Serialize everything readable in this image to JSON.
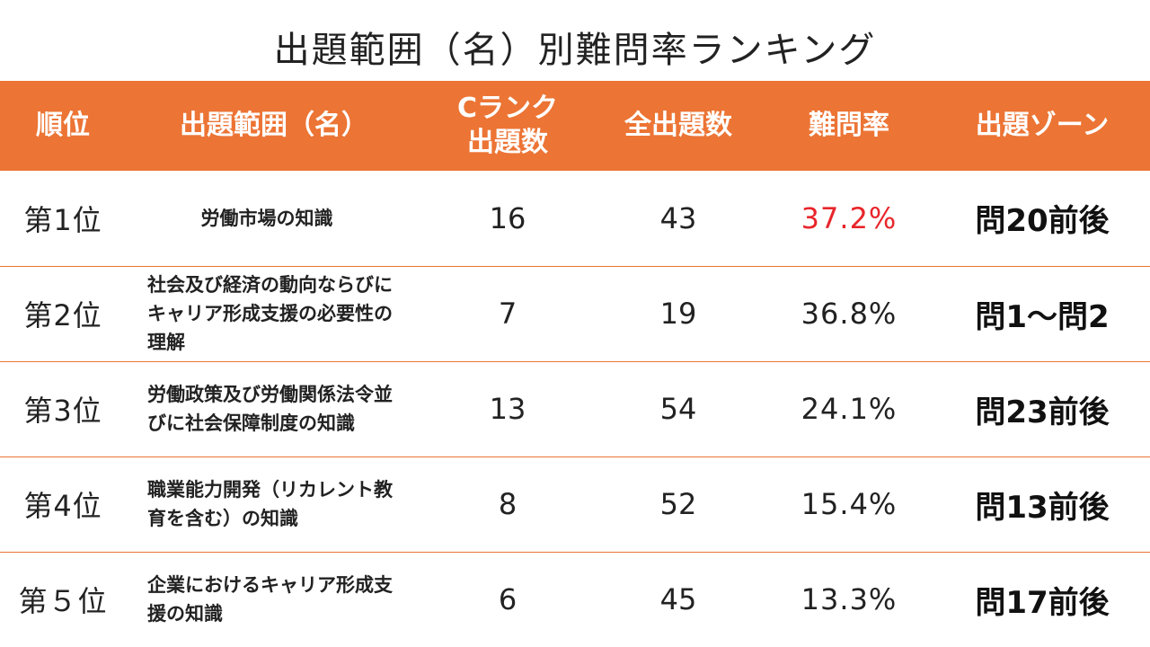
{
  "title": "出題範囲（名）別難問率ランキング",
  "colors": {
    "header_bg": "#ec7434",
    "header_text": "#ffffff",
    "row_divider": "#ec7434",
    "highlight_rate": "#e8262b"
  },
  "headers": {
    "rank": "順位",
    "category": "出題範囲（名）",
    "c_count": "Cランク\n出題数",
    "total": "全出題数",
    "difficulty": "難問率",
    "zone": "出題ゾーン"
  },
  "rows": [
    {
      "rank": "第1位",
      "category": "労働市場の知識",
      "c_count": "16",
      "total": "43",
      "difficulty": "37.2%",
      "zone": "問20前後"
    },
    {
      "rank": "第2位",
      "category": "社会及び経済の動向ならびにキャリア形成支援の必要性の理解",
      "c_count": "7",
      "total": "19",
      "difficulty": "36.8%",
      "zone": "問1～問2"
    },
    {
      "rank": "第3位",
      "category": "労働政策及び労働関係法令並びに社会保障制度の知識",
      "c_count": "13",
      "total": "54",
      "difficulty": "24.1%",
      "zone": "問23前後"
    },
    {
      "rank": "第4位",
      "category": "職業能力開発（リカレント教育を含む）の知識",
      "c_count": "8",
      "total": "52",
      "difficulty": "15.4%",
      "zone": "問13前後"
    },
    {
      "rank": "第５位",
      "category": "企業におけるキャリア形成支援の知識",
      "c_count": "6",
      "total": "45",
      "difficulty": "13.3%",
      "zone": "問17前後"
    }
  ]
}
